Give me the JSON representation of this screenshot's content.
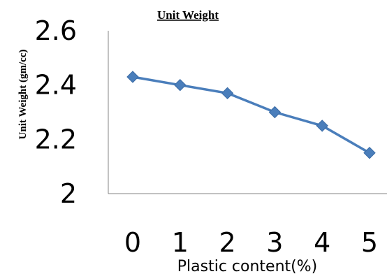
{
  "chart_data": {
    "type": "line",
    "title": "Unit Weight",
    "xlabel": "Plastic content(%)",
    "ylabel": "Unit Weight  (gm/cc)",
    "categories": [
      "0",
      "1",
      "2",
      "3",
      "4",
      "5"
    ],
    "x": [
      0,
      1,
      2,
      3,
      4,
      5
    ],
    "series": [
      {
        "values": [
          2.43,
          2.4,
          2.37,
          2.3,
          2.25,
          2.15
        ],
        "color": "#4a7ebb",
        "marker": "diamond"
      }
    ],
    "yticks": [
      "2",
      "2.2",
      "2.4",
      "2.6"
    ],
    "ylim": [
      2,
      2.6
    ],
    "grid": false,
    "legend": "none"
  }
}
